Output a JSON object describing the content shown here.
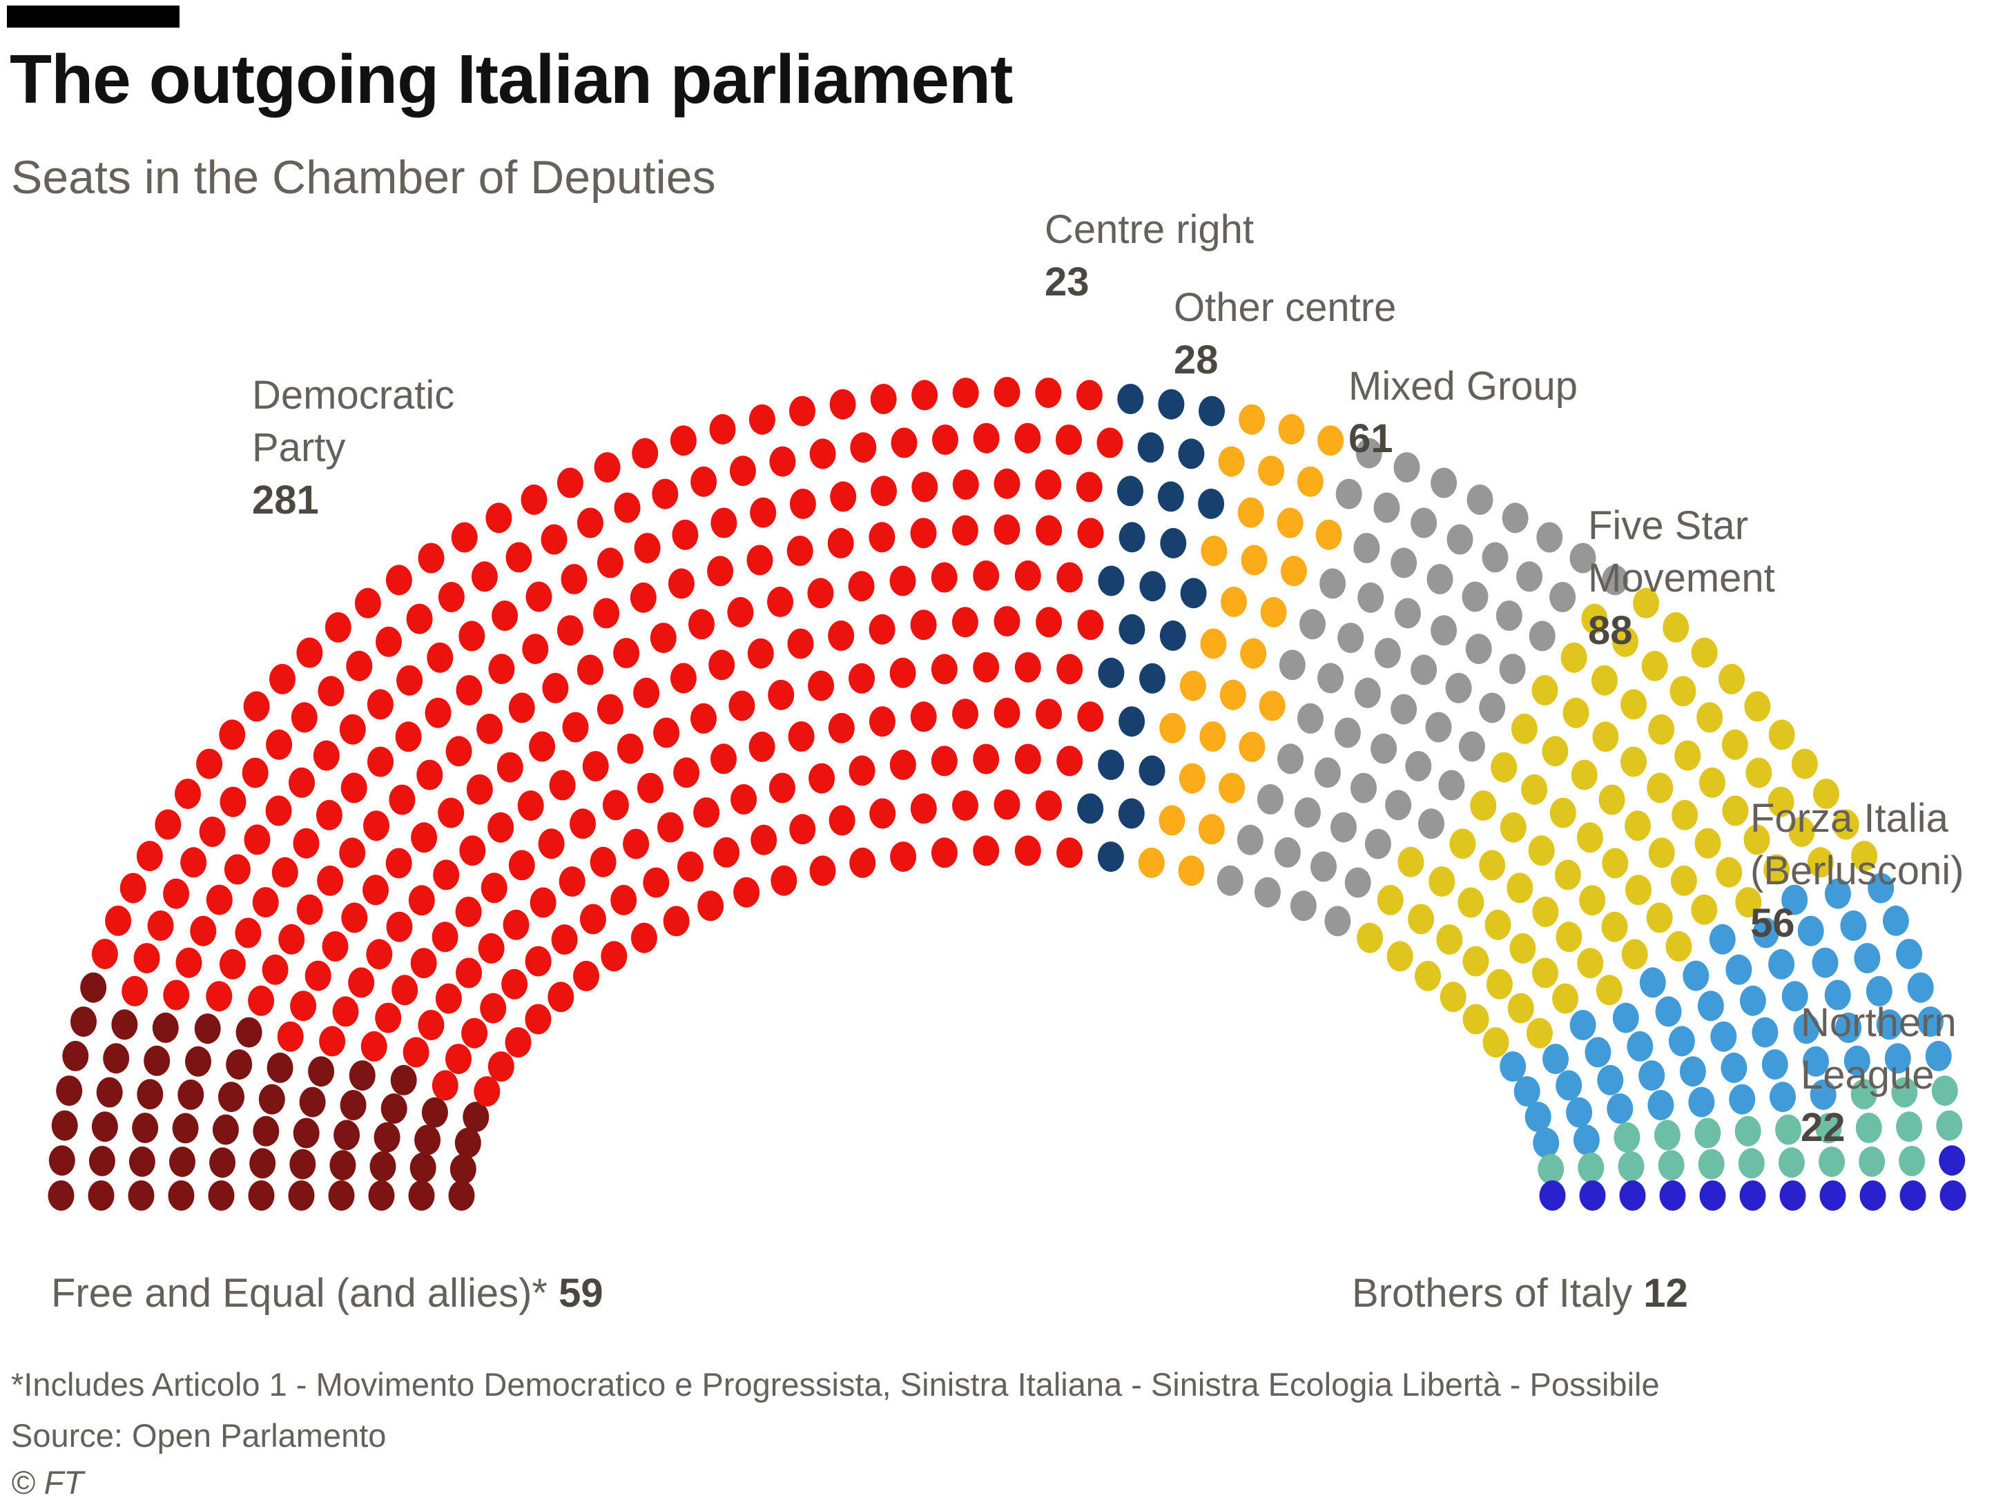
{
  "header": {
    "title": "The outgoing Italian parliament",
    "subtitle": "Seats in the Chamber of Deputies"
  },
  "chart_data": {
    "type": "parliament",
    "house": "Chamber of Deputies",
    "total_seats": 630,
    "title": "The outgoing Italian parliament",
    "subtitle": "Seats in the Chamber of Deputies",
    "layout_hint": "semicircle hemicycle, 11 concentric rows, parties filled by angle left to right, labels placed around the arc",
    "series": [
      {
        "name": "Free and Equal (and allies)*",
        "seats": 59,
        "color": "#7B1412"
      },
      {
        "name": "Democratic Party",
        "seats": 281,
        "color": "#EC120E"
      },
      {
        "name": "Centre right",
        "seats": 23,
        "color": "#17406F"
      },
      {
        "name": "Other centre",
        "seats": 28,
        "color": "#FBAC18"
      },
      {
        "name": "Mixed Group",
        "seats": 61,
        "color": "#979797"
      },
      {
        "name": "Five Star Movement",
        "seats": 88,
        "color": "#E0C51E"
      },
      {
        "name": "Forza Italia (Berlusconi)",
        "seats": 56,
        "color": "#429BD9"
      },
      {
        "name": "Northern League",
        "seats": 22,
        "color": "#6CBFA4"
      },
      {
        "name": "Brothers of Italy",
        "seats": 12,
        "color": "#2921CC"
      }
    ]
  },
  "labels": {
    "democratic_party": {
      "line1": "Democratic",
      "line2": "Party",
      "value": "281"
    },
    "centre_right": {
      "line1": "Centre right",
      "value": "23"
    },
    "other_centre": {
      "line1": "Other centre",
      "value": "28"
    },
    "mixed_group": {
      "line1": "Mixed Group",
      "value": "61"
    },
    "five_star": {
      "line1": "Five Star",
      "line2": "Movement",
      "value": "88"
    },
    "forza_italia": {
      "line1": "Forza Italia",
      "line2": "(Berlusconi)",
      "value": "56"
    },
    "northern_league": {
      "line1": "Northern",
      "line2": "League",
      "value": "22"
    },
    "free_and_equal": {
      "text": "Free and Equal (and allies)* ",
      "value": "59"
    },
    "brothers_of_italy": {
      "text": "Brothers of Italy ",
      "value": "12"
    }
  },
  "footer": {
    "footnote": "*Includes Articolo 1 - Movimento Democratico e Progressista, Sinistra Italiana - Sinistra Ecologia Libertà - Possibile",
    "source": "Source: Open Parlamento",
    "copyright": "© FT"
  }
}
